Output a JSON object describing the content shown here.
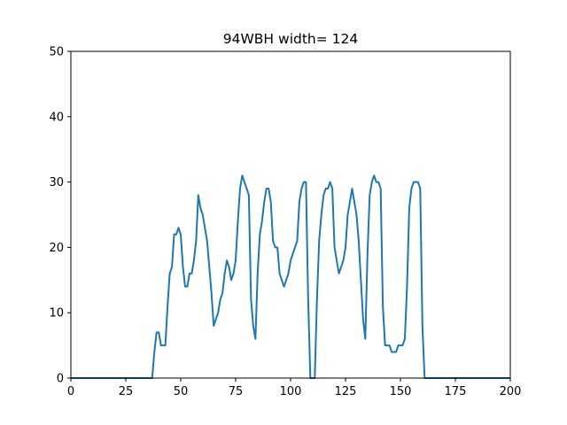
{
  "chart_data": {
    "type": "line",
    "title": "94WBH width= 124",
    "xlabel": "",
    "ylabel": "",
    "xlim": [
      0,
      200
    ],
    "ylim": [
      0,
      50
    ],
    "xticks": [
      0,
      25,
      50,
      75,
      100,
      125,
      150,
      175,
      200
    ],
    "yticks": [
      0,
      10,
      20,
      30,
      40,
      50
    ],
    "grid": false,
    "colors": {
      "line": "#1f77b4"
    },
    "series": [
      {
        "x": [
          0,
          37,
          38,
          39,
          40,
          41,
          42,
          43,
          44,
          45,
          46,
          47,
          48,
          49,
          50,
          51,
          52,
          53,
          54,
          55,
          56,
          57,
          58,
          59,
          60,
          61,
          62,
          63,
          64,
          65,
          66,
          67,
          68,
          69,
          70,
          71,
          72,
          73,
          74,
          75,
          76,
          77,
          78,
          79,
          80,
          81,
          82,
          83,
          84,
          85,
          86,
          87,
          88,
          89,
          90,
          91,
          92,
          93,
          94,
          95,
          96,
          97,
          98,
          99,
          100,
          101,
          102,
          103,
          104,
          105,
          106,
          107,
          108,
          109,
          110,
          111,
          112,
          113,
          114,
          115,
          116,
          117,
          118,
          119,
          120,
          121,
          122,
          123,
          124,
          125,
          126,
          127,
          128,
          129,
          130,
          131,
          132,
          133,
          134,
          135,
          136,
          137,
          138,
          139,
          140,
          141,
          142,
          143,
          144,
          145,
          146,
          147,
          148,
          149,
          150,
          151,
          152,
          153,
          154,
          155,
          156,
          157,
          158,
          159,
          160,
          161,
          162,
          200
        ],
        "y": [
          0,
          0,
          4,
          7,
          7,
          5,
          5,
          5,
          11,
          16,
          17,
          22,
          22,
          23,
          22,
          17,
          14,
          14,
          16,
          16,
          18,
          21,
          28,
          26,
          25,
          23,
          21,
          17,
          13,
          8,
          9,
          10,
          12,
          13,
          16,
          18,
          17,
          15,
          16,
          18,
          24,
          29,
          31,
          30,
          29,
          28,
          12,
          8,
          6,
          16,
          22,
          24,
          27,
          29,
          29,
          27,
          21,
          20,
          20,
          16,
          15,
          14,
          15,
          16,
          18,
          19,
          20,
          21,
          27,
          29,
          30,
          30,
          12,
          0,
          0,
          0,
          12,
          21,
          25,
          28,
          29,
          29,
          30,
          29,
          20,
          18,
          16,
          17,
          18,
          20,
          25,
          27,
          29,
          27,
          25,
          21,
          15,
          9,
          6,
          19,
          28,
          30,
          31,
          30,
          30,
          29,
          11,
          5,
          5,
          5,
          4,
          4,
          4,
          5,
          5,
          5,
          6,
          14,
          26,
          29,
          30,
          30,
          30,
          29,
          8,
          0,
          0,
          0
        ]
      }
    ]
  }
}
